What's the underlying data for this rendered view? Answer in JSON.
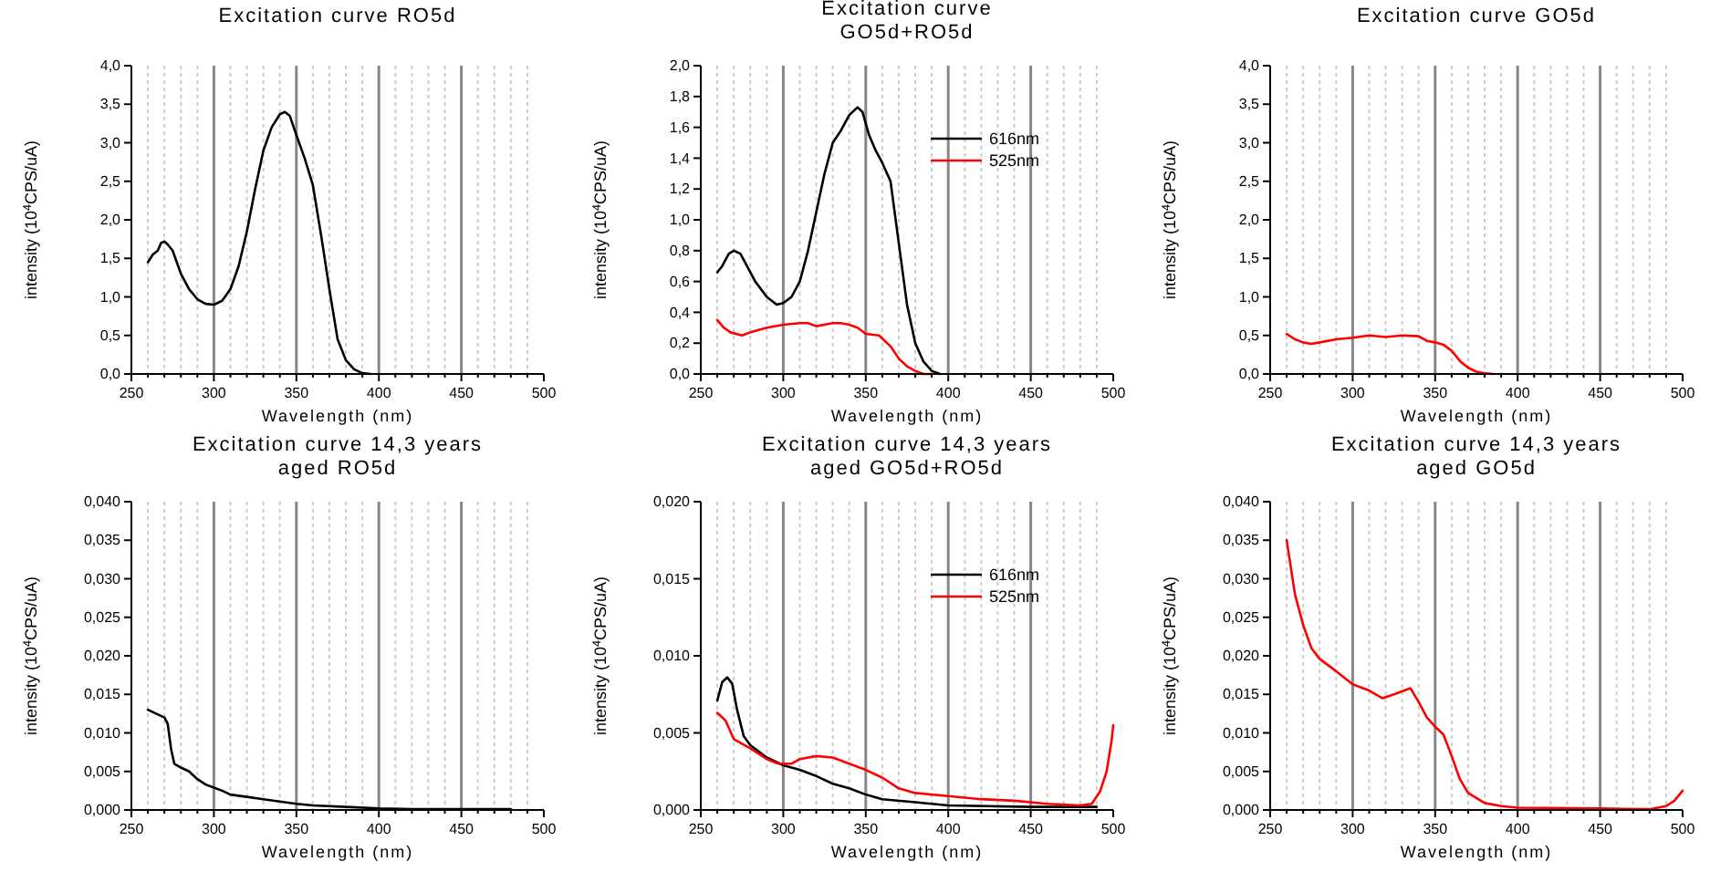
{
  "chart_data": [
    {
      "type": "line",
      "title": "Excitation curve RO5d",
      "xlabel": "Wavelength (nm)",
      "ylabel": "intensity (10$^{4}$CPS/uA)",
      "xlim": [
        250,
        500
      ],
      "ylim": [
        0,
        4
      ],
      "grid": "x",
      "legend": false,
      "xticks": [
        250,
        {
          "value": 260,
          "label": null
        },
        {
          "value": 270,
          "label": null
        },
        {
          "value": 280,
          "label": null
        },
        {
          "value": 290,
          "label": null
        },
        300,
        {
          "value": 310,
          "label": null
        },
        {
          "value": 320,
          "label": null
        },
        {
          "value": 330,
          "label": null
        },
        {
          "value": 340,
          "label": null
        },
        350,
        {
          "value": 360,
          "label": null
        },
        {
          "value": 370,
          "label": null
        },
        {
          "value": 380,
          "label": null
        },
        {
          "value": 390,
          "label": null
        },
        400,
        {
          "value": 410,
          "label": null
        },
        {
          "value": 420,
          "label": null
        },
        {
          "value": 430,
          "label": null
        },
        {
          "value": 440,
          "label": null
        },
        450,
        {
          "value": 460,
          "label": null
        },
        {
          "value": 470,
          "label": null
        },
        {
          "value": 480,
          "label": null
        },
        {
          "value": 490,
          "label": null
        },
        500
      ],
      "yticks": [
        {
          "value": 0,
          "label": "0,0"
        },
        {
          "value": 0.5,
          "label": "0,5"
        },
        {
          "value": 1,
          "label": "1,0"
        },
        {
          "value": 1.5,
          "label": "1,5"
        },
        {
          "value": 2,
          "label": "2,0"
        },
        {
          "value": 2.5,
          "label": "2,5"
        },
        {
          "value": 3,
          "label": "3,0"
        },
        {
          "value": 3.5,
          "label": "3,5"
        },
        {
          "value": 4,
          "label": "4,0"
        }
      ],
      "series": [
        {
          "color": "#000000",
          "x": [
            260,
            263,
            266,
            268,
            270,
            272,
            275,
            280,
            285,
            290,
            295,
            300,
            305,
            310,
            315,
            320,
            325,
            330,
            335,
            340,
            343,
            346,
            350,
            355,
            360,
            365,
            370,
            375,
            380,
            385,
            390,
            395
          ],
          "values": [
            1.45,
            1.55,
            1.6,
            1.7,
            1.72,
            1.68,
            1.6,
            1.3,
            1.1,
            0.97,
            0.91,
            0.9,
            0.95,
            1.1,
            1.4,
            1.85,
            2.4,
            2.9,
            3.2,
            3.37,
            3.4,
            3.35,
            3.1,
            2.8,
            2.45,
            1.8,
            1.1,
            0.45,
            0.18,
            0.06,
            0.01,
            0
          ]
        }
      ]
    },
    {
      "type": "line",
      "title": "Excitation curve\nGO5d+RO5d",
      "xlabel": "Wavelength (nm)",
      "ylabel": "intensity (10$^{4}$CPS/uA)",
      "xlim": [
        250,
        500
      ],
      "ylim": [
        0,
        2
      ],
      "grid": "x",
      "legend": "top right",
      "xticks": [
        250,
        {
          "value": 260,
          "label": null
        },
        {
          "value": 270,
          "label": null
        },
        {
          "value": 280,
          "label": null
        },
        {
          "value": 290,
          "label": null
        },
        300,
        {
          "value": 310,
          "label": null
        },
        {
          "value": 320,
          "label": null
        },
        {
          "value": 330,
          "label": null
        },
        {
          "value": 340,
          "label": null
        },
        350,
        {
          "value": 360,
          "label": null
        },
        {
          "value": 370,
          "label": null
        },
        {
          "value": 380,
          "label": null
        },
        {
          "value": 390,
          "label": null
        },
        400,
        {
          "value": 410,
          "label": null
        },
        {
          "value": 420,
          "label": null
        },
        {
          "value": 430,
          "label": null
        },
        {
          "value": 440,
          "label": null
        },
        450,
        {
          "value": 460,
          "label": null
        },
        {
          "value": 470,
          "label": null
        },
        {
          "value": 480,
          "label": null
        },
        {
          "value": 490,
          "label": null
        },
        500
      ],
      "yticks": [
        {
          "value": 0,
          "label": "0,0"
        },
        {
          "value": 0.2,
          "label": "0,2"
        },
        {
          "value": 0.4,
          "label": "0,4"
        },
        {
          "value": 0.6,
          "label": "0,6"
        },
        {
          "value": 0.8,
          "label": "0,8"
        },
        {
          "value": 1,
          "label": "1,0"
        },
        {
          "value": 1.2,
          "label": "1,2"
        },
        {
          "value": 1.4,
          "label": "1,4"
        },
        {
          "value": 1.6,
          "label": "1,6"
        },
        {
          "value": 1.8,
          "label": "1,8"
        },
        {
          "value": 2,
          "label": "2,0"
        }
      ],
      "series": [
        {
          "name": "616nm",
          "color": "#000000",
          "x": [
            260,
            263,
            267,
            270,
            274,
            278,
            283,
            290,
            296,
            300,
            305,
            310,
            315,
            320,
            325,
            330,
            335,
            340,
            345,
            348,
            352,
            356,
            360,
            365,
            370,
            375,
            380,
            385,
            390,
            395
          ],
          "values": [
            0.66,
            0.7,
            0.78,
            0.8,
            0.78,
            0.7,
            0.6,
            0.5,
            0.45,
            0.46,
            0.5,
            0.6,
            0.8,
            1.05,
            1.3,
            1.5,
            1.58,
            1.68,
            1.73,
            1.7,
            1.55,
            1.45,
            1.37,
            1.25,
            0.85,
            0.45,
            0.2,
            0.08,
            0.02,
            0
          ]
        },
        {
          "name": "525nm",
          "color": "#ff0000",
          "x": [
            260,
            264,
            268,
            275,
            280,
            290,
            300,
            310,
            315,
            320,
            330,
            335,
            340,
            345,
            350,
            358,
            365,
            370,
            375,
            380,
            385,
            390
          ],
          "values": [
            0.35,
            0.3,
            0.27,
            0.25,
            0.27,
            0.3,
            0.32,
            0.33,
            0.33,
            0.31,
            0.33,
            0.33,
            0.32,
            0.3,
            0.26,
            0.25,
            0.18,
            0.1,
            0.05,
            0.02,
            0,
            0
          ]
        }
      ]
    },
    {
      "type": "line",
      "title": "Excitation curve GO5d",
      "xlabel": "Wavelength (nm)",
      "ylabel": "intensity (10$^{4}$CPS/uA)",
      "xlim": [
        250,
        500
      ],
      "ylim": [
        0,
        4
      ],
      "grid": "x",
      "legend": false,
      "xticks": [
        250,
        {
          "value": 260,
          "label": null
        },
        {
          "value": 270,
          "label": null
        },
        {
          "value": 280,
          "label": null
        },
        {
          "value": 290,
          "label": null
        },
        300,
        {
          "value": 310,
          "label": null
        },
        {
          "value": 320,
          "label": null
        },
        {
          "value": 330,
          "label": null
        },
        {
          "value": 340,
          "label": null
        },
        350,
        {
          "value": 360,
          "label": null
        },
        {
          "value": 370,
          "label": null
        },
        {
          "value": 380,
          "label": null
        },
        {
          "value": 390,
          "label": null
        },
        400,
        {
          "value": 410,
          "label": null
        },
        {
          "value": 420,
          "label": null
        },
        {
          "value": 430,
          "label": null
        },
        {
          "value": 440,
          "label": null
        },
        450,
        {
          "value": 460,
          "label": null
        },
        {
          "value": 470,
          "label": null
        },
        {
          "value": 480,
          "label": null
        },
        {
          "value": 490,
          "label": null
        },
        500
      ],
      "yticks": [
        {
          "value": 0,
          "label": "0,0"
        },
        {
          "value": 0.5,
          "label": "0,5"
        },
        {
          "value": 1,
          "label": "1,0"
        },
        {
          "value": 1.5,
          "label": "1,5"
        },
        {
          "value": 2,
          "label": "2,0"
        },
        {
          "value": 2.5,
          "label": "2,5"
        },
        {
          "value": 3,
          "label": "3,0"
        },
        {
          "value": 3.5,
          "label": "3,5"
        },
        {
          "value": 4,
          "label": "4,0"
        }
      ],
      "series": [
        {
          "color": "#ff0000",
          "x": [
            260,
            265,
            270,
            275,
            280,
            290,
            300,
            310,
            320,
            330,
            340,
            345,
            350,
            355,
            360,
            365,
            370,
            375,
            380,
            385
          ],
          "values": [
            0.52,
            0.45,
            0.41,
            0.39,
            0.41,
            0.45,
            0.47,
            0.5,
            0.48,
            0.5,
            0.49,
            0.43,
            0.41,
            0.38,
            0.3,
            0.17,
            0.08,
            0.03,
            0.01,
            0
          ]
        }
      ]
    },
    {
      "type": "line",
      "title": "Excitation curve 14,3 years\naged RO5d",
      "xlabel": "Wavelength (nm)",
      "ylabel": "intensity (10$^{4}$CPS/uA)",
      "xlim": [
        250,
        500
      ],
      "ylim": [
        0,
        0.04
      ],
      "grid": "x",
      "legend": false,
      "xticks": [
        250,
        {
          "value": 260,
          "label": null
        },
        {
          "value": 270,
          "label": null
        },
        {
          "value": 280,
          "label": null
        },
        {
          "value": 290,
          "label": null
        },
        300,
        {
          "value": 310,
          "label": null
        },
        {
          "value": 320,
          "label": null
        },
        {
          "value": 330,
          "label": null
        },
        {
          "value": 340,
          "label": null
        },
        350,
        {
          "value": 360,
          "label": null
        },
        {
          "value": 370,
          "label": null
        },
        {
          "value": 380,
          "label": null
        },
        {
          "value": 390,
          "label": null
        },
        400,
        {
          "value": 410,
          "label": null
        },
        {
          "value": 420,
          "label": null
        },
        {
          "value": 430,
          "label": null
        },
        {
          "value": 440,
          "label": null
        },
        450,
        {
          "value": 460,
          "label": null
        },
        {
          "value": 470,
          "label": null
        },
        {
          "value": 480,
          "label": null
        },
        {
          "value": 490,
          "label": null
        },
        500
      ],
      "yticks": [
        {
          "value": 0,
          "label": "0,000"
        },
        {
          "value": 0.005,
          "label": "0,005"
        },
        {
          "value": 0.01,
          "label": "0,010"
        },
        {
          "value": 0.015,
          "label": "0,015"
        },
        {
          "value": 0.02,
          "label": "0,020"
        },
        {
          "value": 0.025,
          "label": "0,025"
        },
        {
          "value": 0.03,
          "label": "0,030"
        },
        {
          "value": 0.035,
          "label": "0,035"
        },
        {
          "value": 0.04,
          "label": "0,040"
        }
      ],
      "series": [
        {
          "color": "#000000",
          "x": [
            260,
            265,
            270,
            272,
            274,
            276,
            280,
            285,
            290,
            295,
            300,
            305,
            310,
            320,
            330,
            340,
            350,
            360,
            380,
            400,
            420,
            450,
            480
          ],
          "values": [
            0.013,
            0.0125,
            0.012,
            0.0112,
            0.008,
            0.006,
            0.0055,
            0.005,
            0.004,
            0.0033,
            0.0029,
            0.0025,
            0.002,
            0.0017,
            0.0014,
            0.0011,
            0.0008,
            0.0006,
            0.0004,
            0.0002,
            0.0001,
            0.0001,
            0.0001
          ]
        }
      ]
    },
    {
      "type": "line",
      "title": "Excitation curve 14,3 years\naged GO5d+RO5d",
      "xlabel": "Wavelength (nm)",
      "ylabel": "intensity (10$^{4}$CPS/uA)",
      "xlim": [
        250,
        500
      ],
      "ylim": [
        0,
        0.02
      ],
      "grid": "x",
      "legend": "top right",
      "xticks": [
        250,
        {
          "value": 260,
          "label": null
        },
        {
          "value": 270,
          "label": null
        },
        {
          "value": 280,
          "label": null
        },
        {
          "value": 290,
          "label": null
        },
        300,
        {
          "value": 310,
          "label": null
        },
        {
          "value": 320,
          "label": null
        },
        {
          "value": 330,
          "label": null
        },
        {
          "value": 340,
          "label": null
        },
        350,
        {
          "value": 360,
          "label": null
        },
        {
          "value": 370,
          "label": null
        },
        {
          "value": 380,
          "label": null
        },
        {
          "value": 390,
          "label": null
        },
        400,
        {
          "value": 410,
          "label": null
        },
        {
          "value": 420,
          "label": null
        },
        {
          "value": 430,
          "label": null
        },
        {
          "value": 440,
          "label": null
        },
        450,
        {
          "value": 460,
          "label": null
        },
        {
          "value": 470,
          "label": null
        },
        {
          "value": 480,
          "label": null
        },
        {
          "value": 490,
          "label": null
        },
        500
      ],
      "yticks": [
        {
          "value": 0,
          "label": "0,000"
        },
        {
          "value": 0.005,
          "label": "0,005"
        },
        {
          "value": 0.01,
          "label": "0,010"
        },
        {
          "value": 0.015,
          "label": "0,015"
        },
        {
          "value": 0.02,
          "label": "0,020"
        }
      ],
      "series": [
        {
          "name": "616nm",
          "color": "#000000",
          "x": [
            260,
            263,
            266,
            269,
            272,
            276,
            280,
            290,
            300,
            310,
            320,
            330,
            340,
            350,
            360,
            380,
            400,
            450,
            490
          ],
          "values": [
            0.0071,
            0.0083,
            0.0086,
            0.0082,
            0.0065,
            0.0048,
            0.0042,
            0.0034,
            0.0029,
            0.0026,
            0.0022,
            0.0017,
            0.0014,
            0.001,
            0.0007,
            0.0005,
            0.0003,
            0.0002,
            0.0002
          ]
        },
        {
          "name": "525nm",
          "color": "#ff0000",
          "x": [
            260,
            265,
            270,
            280,
            290,
            297,
            305,
            310,
            320,
            330,
            340,
            350,
            360,
            370,
            380,
            400,
            420,
            440,
            460,
            480,
            487,
            492,
            496,
            499,
            500
          ],
          "values": [
            0.0063,
            0.0058,
            0.0046,
            0.004,
            0.0033,
            0.003,
            0.003,
            0.0033,
            0.0035,
            0.0034,
            0.003,
            0.0026,
            0.0021,
            0.0014,
            0.0011,
            0.0009,
            0.0007,
            0.0006,
            0.0004,
            0.0003,
            0.0004,
            0.0012,
            0.0025,
            0.0045,
            0.0055
          ]
        }
      ]
    },
    {
      "type": "line",
      "title": "Excitation curve 14,3 years\naged GO5d",
      "xlabel": "Wavelength (nm)",
      "ylabel": "intensity (10$^{4}$CPS/uA)",
      "xlim": [
        250,
        500
      ],
      "ylim": [
        0,
        0.04
      ],
      "grid": "x",
      "legend": false,
      "xticks": [
        250,
        {
          "value": 260,
          "label": null
        },
        {
          "value": 270,
          "label": null
        },
        {
          "value": 280,
          "label": null
        },
        {
          "value": 290,
          "label": null
        },
        300,
        {
          "value": 310,
          "label": null
        },
        {
          "value": 320,
          "label": null
        },
        {
          "value": 330,
          "label": null
        },
        {
          "value": 340,
          "label": null
        },
        350,
        {
          "value": 360,
          "label": null
        },
        {
          "value": 370,
          "label": null
        },
        {
          "value": 380,
          "label": null
        },
        {
          "value": 390,
          "label": null
        },
        400,
        {
          "value": 410,
          "label": null
        },
        {
          "value": 420,
          "label": null
        },
        {
          "value": 430,
          "label": null
        },
        {
          "value": 440,
          "label": null
        },
        450,
        {
          "value": 460,
          "label": null
        },
        {
          "value": 470,
          "label": null
        },
        {
          "value": 480,
          "label": null
        },
        {
          "value": 490,
          "label": null
        },
        500
      ],
      "yticks": [
        {
          "value": 0,
          "label": "0,000"
        },
        {
          "value": 0.005,
          "label": "0,005"
        },
        {
          "value": 0.01,
          "label": "0,010"
        },
        {
          "value": 0.015,
          "label": "0,015"
        },
        {
          "value": 0.02,
          "label": "0,020"
        },
        {
          "value": 0.025,
          "label": "0,025"
        },
        {
          "value": 0.03,
          "label": "0,030"
        },
        {
          "value": 0.035,
          "label": "0,035"
        },
        {
          "value": 0.04,
          "label": "0,040"
        }
      ],
      "series": [
        {
          "color": "#ff0000",
          "x": [
            260,
            265,
            270,
            275,
            280,
            290,
            300,
            310,
            318,
            325,
            335,
            340,
            345,
            350,
            355,
            360,
            365,
            370,
            380,
            390,
            400,
            450,
            480,
            490,
            495,
            500
          ],
          "values": [
            0.035,
            0.028,
            0.024,
            0.021,
            0.0196,
            0.018,
            0.0163,
            0.0155,
            0.0145,
            0.015,
            0.0158,
            0.014,
            0.012,
            0.0108,
            0.0098,
            0.007,
            0.004,
            0.0022,
            0.0009,
            0.0005,
            0.0003,
            0.0002,
            0.0001,
            0.0005,
            0.0012,
            0.0025
          ]
        }
      ]
    }
  ]
}
